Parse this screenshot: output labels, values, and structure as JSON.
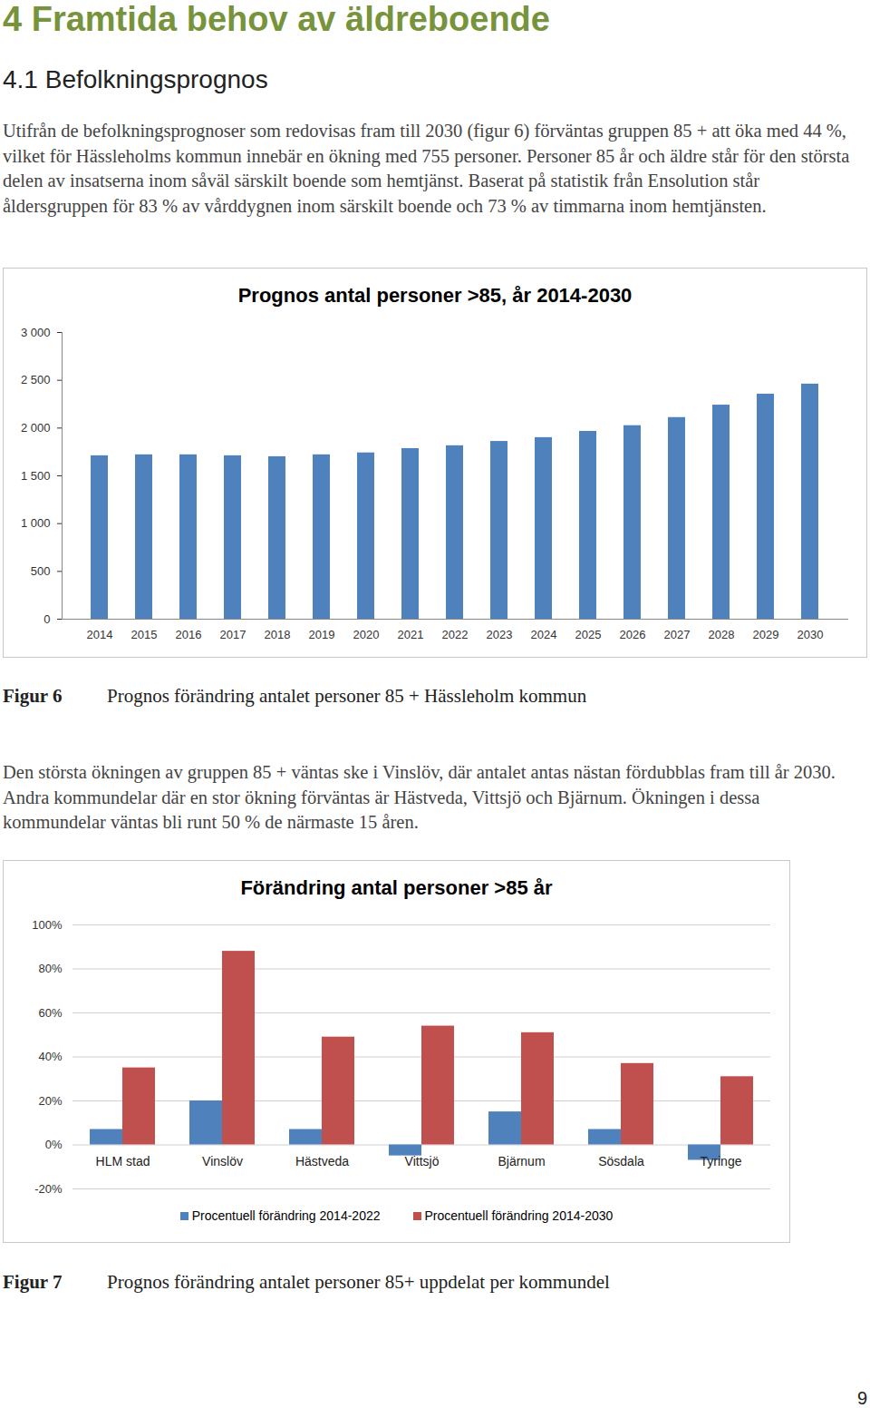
{
  "heading": "4 Framtida behov av äldreboende",
  "subheading": "4.1 Befolkningsprognos",
  "paragraphs": [
    "Utifrån de befolkningsprognoser som redovisas fram till 2030 (figur 6) förväntas gruppen 85 + att öka med 44 %, vilket för Hässleholms kommun innebär en ökning med 755 personer. Personer 85 år och äldre står för den största delen av insatserna inom såväl särskilt boende som hemtjänst. Baserat på statistik från Ensolution står åldersgruppen för 83 % av vårddygnen inom särskilt boende och 73 % av timmarna inom hemtjänsten.",
    "Den största ökningen av gruppen 85 + väntas ske i Vinslöv, där antalet antas nästan fördubblas fram till år 2030. Andra kommundelar där en stor ökning förväntas är Hästveda, Vittsjö och Bjärnum. Ökningen i dessa kommundelar väntas bli runt 50 % de närmaste 15 åren."
  ],
  "figures": [
    {
      "label": "Figur 6",
      "caption": "Prognos förändring antalet personer 85 + Hässleholm kommun"
    },
    {
      "label": "Figur 7",
      "caption": "Prognos förändring antalet personer 85+ uppdelat per kommundel"
    }
  ],
  "page_number": 9,
  "chart_data": [
    {
      "type": "bar",
      "title": "Prognos antal personer >85, år 2014-2030",
      "categories": [
        "2014",
        "2015",
        "2016",
        "2017",
        "2018",
        "2019",
        "2020",
        "2021",
        "2022",
        "2023",
        "2024",
        "2025",
        "2026",
        "2027",
        "2028",
        "2029",
        "2030"
      ],
      "values": [
        1710,
        1720,
        1720,
        1710,
        1700,
        1720,
        1740,
        1785,
        1815,
        1860,
        1900,
        1965,
        2025,
        2110,
        2240,
        2355,
        2460
      ],
      "color": "#4f81bd",
      "ylim": [
        0,
        3000
      ],
      "yticks": [
        0,
        500,
        {
          "value": 1000,
          "label": "1 000"
        },
        {
          "value": 1500,
          "label": "1 500"
        },
        {
          "value": 2000,
          "label": "2 000"
        },
        {
          "value": 2500,
          "label": "2 500"
        },
        {
          "value": 3000,
          "label": "3 000"
        }
      ],
      "grid": false
    },
    {
      "type": "bar",
      "title": "Förändring antal personer >85 år",
      "categories": [
        "HLM stad",
        "Vinslöv",
        "Hästveda",
        "Vittsjö",
        "Bjärnum",
        "Sösdala",
        "Tyringe"
      ],
      "series": [
        {
          "name": "Procentuell förändring 2014-2022",
          "color": "#4f81bd",
          "values": [
            7,
            20,
            7,
            -5,
            15,
            7,
            -7
          ]
        },
        {
          "name": "Procentuell förändring 2014-2030",
          "color": "#c0504d",
          "values": [
            35,
            88,
            49,
            54,
            51,
            37,
            31
          ]
        }
      ],
      "ylim": [
        -20,
        100
      ],
      "yticks": [
        {
          "value": -20,
          "label": "-20%"
        },
        {
          "value": 0,
          "label": "0%"
        },
        {
          "value": 20,
          "label": "20%"
        },
        {
          "value": 40,
          "label": "40%"
        },
        {
          "value": 60,
          "label": "60%"
        },
        {
          "value": 80,
          "label": "80%"
        },
        {
          "value": 100,
          "label": "100%"
        }
      ],
      "grid": true,
      "legend": "bottom"
    }
  ]
}
